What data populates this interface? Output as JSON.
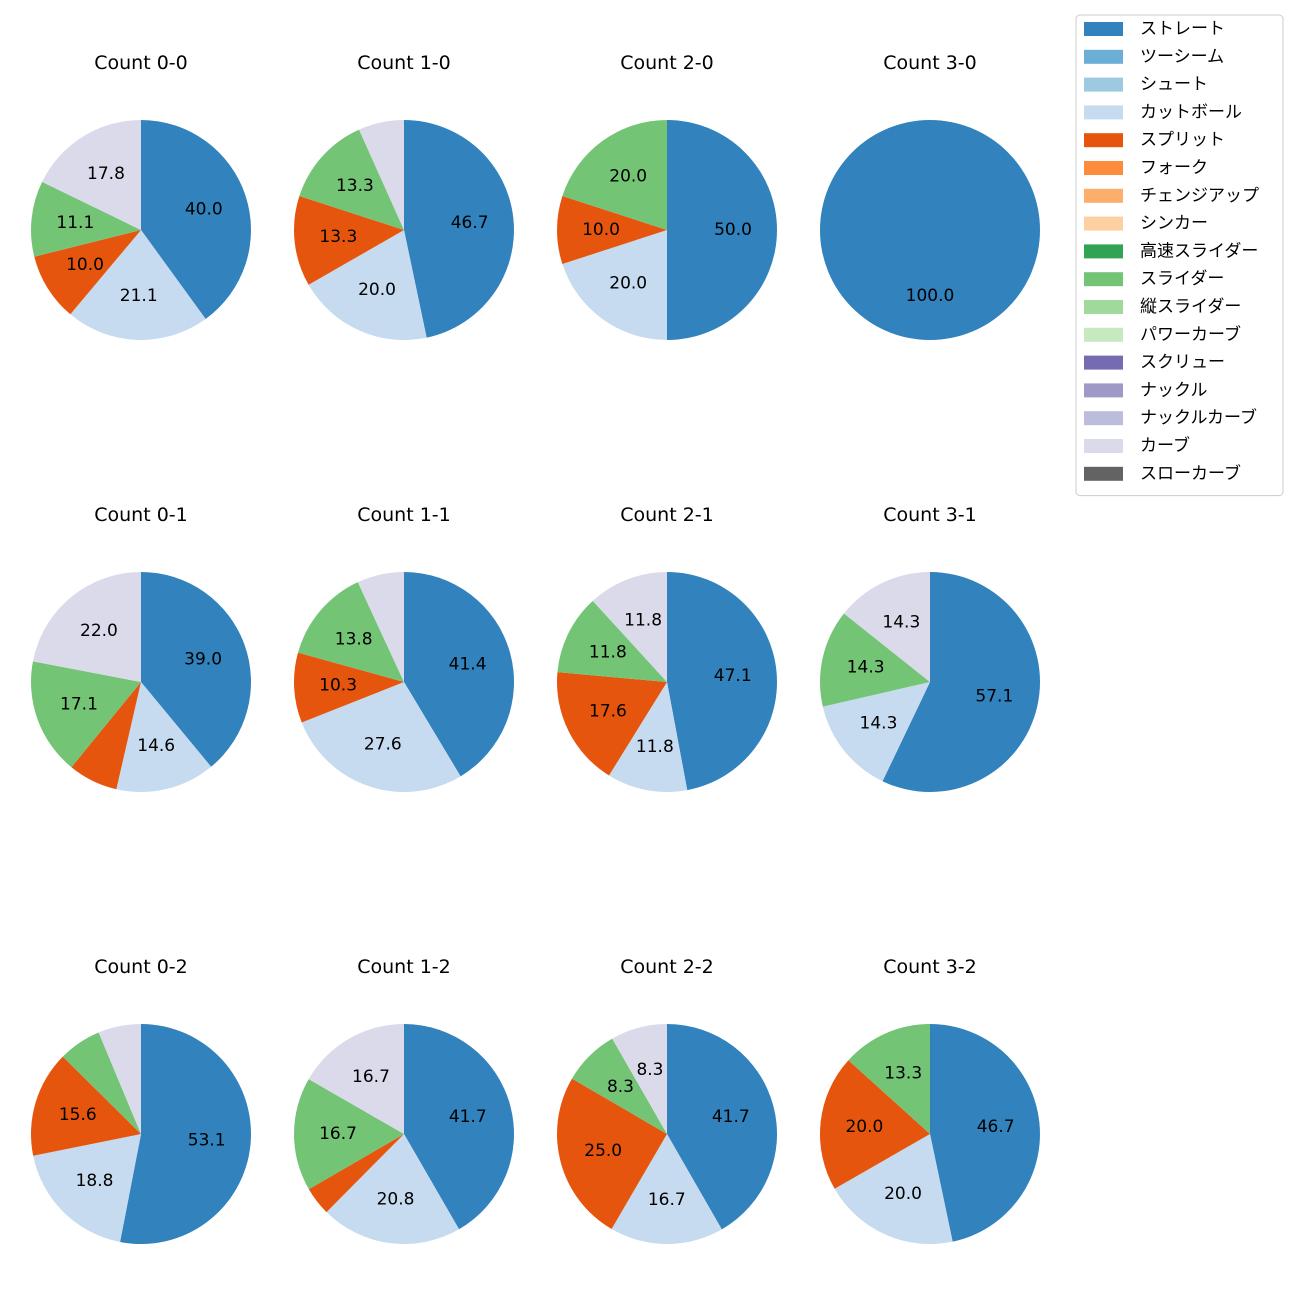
{
  "chart_data": {
    "type": "pie",
    "series_colors": {
      "ストレート": "#3182bd",
      "ツーシーム": "#6baed6",
      "シュート": "#9ecae1",
      "カットボール": "#c6dbef",
      "スプリット": "#e6550d",
      "フォーク": "#fd8d3c",
      "チェンジアップ": "#fdae6b",
      "シンカー": "#fdd0a2",
      "高速スライダー": "#31a354",
      "スライダー": "#74c476",
      "縦スライダー": "#a1d99b",
      "パワーカーブ": "#c7e9c0",
      "スクリュー": "#756bb1",
      "ナックル": "#9e9ac8",
      "ナックルカーブ": "#bcbddc",
      "カーブ": "#dadaeb",
      "スローカーブ": "#636363"
    },
    "legend": {
      "position": "top-right",
      "entries": [
        "ストレート",
        "ツーシーム",
        "シュート",
        "カットボール",
        "スプリット",
        "フォーク",
        "チェンジアップ",
        "シンカー",
        "高速スライダー",
        "スライダー",
        "縦スライダー",
        "パワーカーブ",
        "スクリュー",
        "ナックル",
        "ナックルカーブ",
        "カーブ",
        "スローカーブ"
      ]
    },
    "pies": [
      {
        "title": "Count 0-0",
        "slices": [
          {
            "name": "ストレート",
            "value": 40.0,
            "label": "40.0"
          },
          {
            "name": "カットボール",
            "value": 21.1,
            "label": "21.1"
          },
          {
            "name": "スプリット",
            "value": 10.0,
            "label": "10.0"
          },
          {
            "name": "スライダー",
            "value": 11.1,
            "label": "11.1"
          },
          {
            "name": "カーブ",
            "value": 17.8,
            "label": "17.8"
          }
        ]
      },
      {
        "title": "Count 1-0",
        "slices": [
          {
            "name": "ストレート",
            "value": 46.7,
            "label": "46.7"
          },
          {
            "name": "カットボール",
            "value": 20.0,
            "label": "20.0"
          },
          {
            "name": "スプリット",
            "value": 13.3,
            "label": "13.3"
          },
          {
            "name": "スライダー",
            "value": 13.3,
            "label": "13.3"
          },
          {
            "name": "カーブ",
            "value": 6.7,
            "label": ""
          }
        ]
      },
      {
        "title": "Count 2-0",
        "slices": [
          {
            "name": "ストレート",
            "value": 50.0,
            "label": "50.0"
          },
          {
            "name": "カットボール",
            "value": 20.0,
            "label": "20.0"
          },
          {
            "name": "スプリット",
            "value": 10.0,
            "label": "10.0"
          },
          {
            "name": "スライダー",
            "value": 20.0,
            "label": "20.0"
          }
        ]
      },
      {
        "title": "Count 3-0",
        "slices": [
          {
            "name": "ストレート",
            "value": 100.0,
            "label": "100.0"
          }
        ]
      },
      {
        "title": "Count 0-1",
        "slices": [
          {
            "name": "ストレート",
            "value": 39.0,
            "label": "39.0"
          },
          {
            "name": "カットボール",
            "value": 14.6,
            "label": "14.6"
          },
          {
            "name": "スプリット",
            "value": 7.3,
            "label": ""
          },
          {
            "name": "スライダー",
            "value": 17.1,
            "label": "17.1"
          },
          {
            "name": "カーブ",
            "value": 22.0,
            "label": "22.0"
          }
        ]
      },
      {
        "title": "Count 1-1",
        "slices": [
          {
            "name": "ストレート",
            "value": 41.4,
            "label": "41.4"
          },
          {
            "name": "カットボール",
            "value": 27.6,
            "label": "27.6"
          },
          {
            "name": "スプリット",
            "value": 10.3,
            "label": "10.3"
          },
          {
            "name": "スライダー",
            "value": 13.8,
            "label": "13.8"
          },
          {
            "name": "カーブ",
            "value": 6.9,
            "label": ""
          }
        ]
      },
      {
        "title": "Count 2-1",
        "slices": [
          {
            "name": "ストレート",
            "value": 47.1,
            "label": "47.1"
          },
          {
            "name": "カットボール",
            "value": 11.8,
            "label": "11.8"
          },
          {
            "name": "スプリット",
            "value": 17.6,
            "label": "17.6"
          },
          {
            "name": "スライダー",
            "value": 11.8,
            "label": "11.8"
          },
          {
            "name": "カーブ",
            "value": 11.8,
            "label": "11.8"
          }
        ]
      },
      {
        "title": "Count 3-1",
        "slices": [
          {
            "name": "ストレート",
            "value": 57.1,
            "label": "57.1"
          },
          {
            "name": "カットボール",
            "value": 14.3,
            "label": "14.3"
          },
          {
            "name": "スライダー",
            "value": 14.3,
            "label": "14.3"
          },
          {
            "name": "カーブ",
            "value": 14.3,
            "label": "14.3"
          }
        ]
      },
      {
        "title": "Count 0-2",
        "slices": [
          {
            "name": "ストレート",
            "value": 53.1,
            "label": "53.1"
          },
          {
            "name": "カットボール",
            "value": 18.8,
            "label": "18.8"
          },
          {
            "name": "スプリット",
            "value": 15.6,
            "label": "15.6"
          },
          {
            "name": "スライダー",
            "value": 6.3,
            "label": ""
          },
          {
            "name": "カーブ",
            "value": 6.3,
            "label": ""
          }
        ]
      },
      {
        "title": "Count 1-2",
        "slices": [
          {
            "name": "ストレート",
            "value": 41.7,
            "label": "41.7"
          },
          {
            "name": "カットボール",
            "value": 20.8,
            "label": "20.8"
          },
          {
            "name": "スプリット",
            "value": 4.2,
            "label": ""
          },
          {
            "name": "スライダー",
            "value": 16.7,
            "label": "16.7"
          },
          {
            "name": "カーブ",
            "value": 16.7,
            "label": "16.7"
          }
        ]
      },
      {
        "title": "Count 2-2",
        "slices": [
          {
            "name": "ストレート",
            "value": 41.7,
            "label": "41.7"
          },
          {
            "name": "カットボール",
            "value": 16.7,
            "label": "16.7"
          },
          {
            "name": "スプリット",
            "value": 25.0,
            "label": "25.0"
          },
          {
            "name": "スライダー",
            "value": 8.3,
            "label": "8.3"
          },
          {
            "name": "カーブ",
            "value": 8.3,
            "label": "8.3"
          }
        ]
      },
      {
        "title": "Count 3-2",
        "slices": [
          {
            "name": "ストレート",
            "value": 46.7,
            "label": "46.7"
          },
          {
            "name": "カットボール",
            "value": 20.0,
            "label": "20.0"
          },
          {
            "name": "スプリット",
            "value": 20.0,
            "label": "20.0"
          },
          {
            "name": "スライダー",
            "value": 13.3,
            "label": "13.3"
          }
        ]
      }
    ]
  }
}
